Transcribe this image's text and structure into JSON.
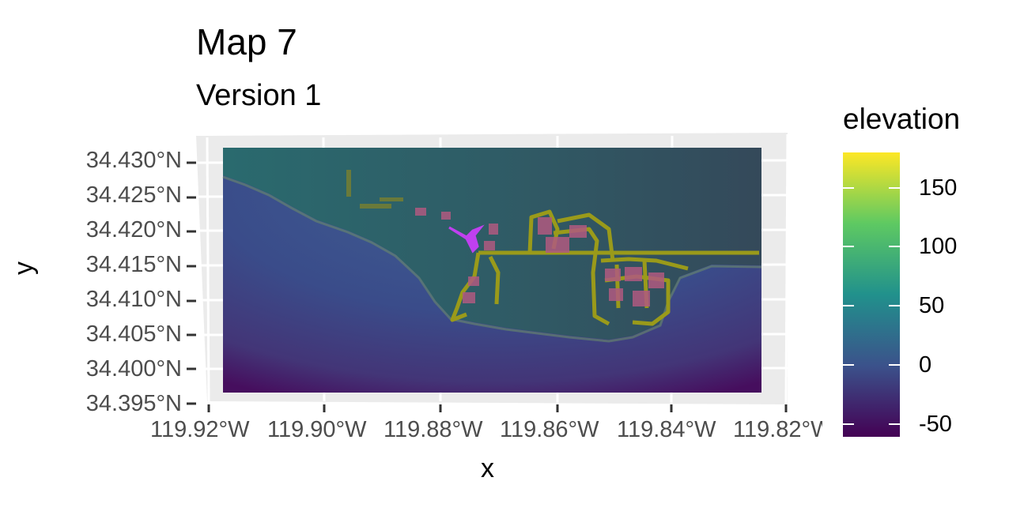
{
  "title": "Map 7",
  "subtitle": "Version 1",
  "axes": {
    "xlabel": "x",
    "ylabel": "y",
    "x_ticks": [
      "119.92°W",
      "119.90°W",
      "119.88°W",
      "119.86°W",
      "119.84°W",
      "119.82°W"
    ],
    "y_ticks": [
      "34.430°N",
      "34.425°N",
      "34.420°N",
      "34.415°N",
      "34.410°N",
      "34.405°N",
      "34.400°N",
      "34.395°N"
    ]
  },
  "legend": {
    "title": "elevation",
    "ticks": [
      "150",
      "100",
      "50",
      "0",
      "-50"
    ],
    "range": [
      -60,
      180
    ],
    "colors": [
      "#440154",
      "#3b528b",
      "#21918c",
      "#5ec962",
      "#fde725"
    ]
  },
  "layers": {
    "terrain": "elevation hillshade raster",
    "ocean_color": "#3b4f8a",
    "land_color": "#2f5f6a",
    "roads_color": "#9a9a1a",
    "buildings_color": "#b05a80",
    "highlight_color": "#c040f0"
  }
}
